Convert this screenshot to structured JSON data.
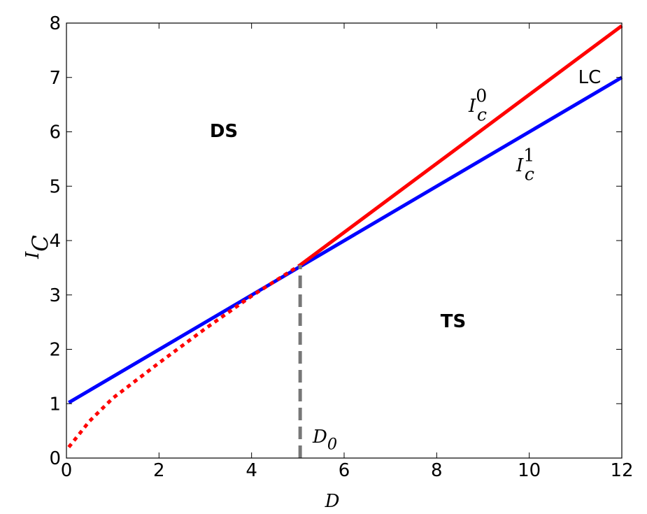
{
  "chart_data": {
    "type": "line",
    "xlabel": {
      "text": "D"
    },
    "ylabel": {
      "text": "I",
      "sub": "C"
    },
    "xlim": [
      0,
      12
    ],
    "ylim": [
      0,
      8
    ],
    "xticks": [
      0,
      2,
      4,
      6,
      8,
      10,
      12
    ],
    "yticks": [
      0,
      1,
      2,
      3,
      4,
      5,
      6,
      7,
      8
    ],
    "series": [
      {
        "color": "#0000ff",
        "style": "solid",
        "x": [
          0.05,
          12
        ],
        "values": [
          1.02,
          7.0
        ]
      },
      {
        "color": "#ff0000",
        "style": "solid",
        "x": [
          5.05,
          12
        ],
        "values": [
          3.55,
          7.95
        ]
      },
      {
        "color": "#ff0000",
        "style": "dotted",
        "x": [
          0.05,
          0.5,
          1,
          2,
          3,
          4,
          5.05
        ],
        "values": [
          0.2,
          0.68,
          1.1,
          1.75,
          2.38,
          2.98,
          3.55
        ]
      },
      {
        "color": "#777777",
        "style": "dashed",
        "x": [
          5.05,
          5.05
        ],
        "values": [
          0,
          3.55
        ]
      }
    ],
    "annotations": [
      {
        "text": "DS"
      },
      {
        "text": "TS"
      },
      {
        "text": "LC"
      },
      {
        "text": "I",
        "sub": "c",
        "sup": "0"
      },
      {
        "text": "I",
        "sub": "c",
        "sup": "1"
      },
      {
        "text": "D",
        "sub": "0"
      }
    ]
  }
}
